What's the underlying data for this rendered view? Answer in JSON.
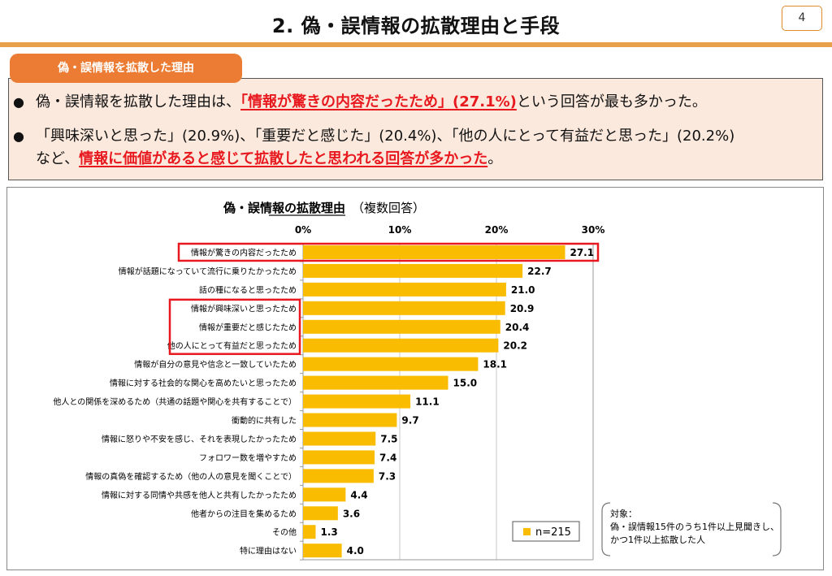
{
  "header": {
    "title": "2. 偽・誤情報の拡散理由と手段",
    "page_number": "4"
  },
  "section": {
    "tab_label": "偽・誤情報を拡散した理由"
  },
  "summary": {
    "bullet1": {
      "pre": "偽・誤情報を拡散した理由は、",
      "highlight": "「情報が驚きの内容だったため」(27.1%)",
      "post": "という回答が最も多かった。"
    },
    "bullet2": {
      "line1": "「興味深いと思った」(20.9%)、「重要だと感じた」(20.4%)、「他の人にとって有益だと思った」(20.2%)",
      "line2_pre": "など、",
      "line2_highlight": "情報に価値があると感じて拡散したと思われる回答が多かった",
      "line2_post": "。"
    }
  },
  "colors": {
    "bar": "#f9bc00",
    "highlight_box": "#e8191e",
    "accent_orange": "#ec7c33",
    "summary_bg": "#fce9dd"
  },
  "chart_data": {
    "type": "bar",
    "orientation": "horizontal",
    "title": "偽・誤情報の拡散理由",
    "subtitle": "（複数回答）",
    "xlim": [
      0,
      30
    ],
    "x_ticks": [
      "0%",
      "10%",
      "20%",
      "30%"
    ],
    "grid": true,
    "categories": [
      "情報が驚きの内容だったため",
      "情報が話題になっていて流行に乗りたかったため",
      "話の種になると思ったため",
      "情報が興味深いと思ったため",
      "情報が重要だと感じたため",
      "他の人にとって有益だと思ったため",
      "情報が自分の意見や信念と一致していたため",
      "情報に対する社会的な関心を高めたいと思ったため",
      "他人との関係を深めるため（共通の話題や関心を共有することで）",
      "衝動的に共有した",
      "情報に怒りや不安を感じ、それを表現したかったため",
      "フォロワー数を増やすため",
      "情報の真偽を確認するため（他の人の意見を聞くことで）",
      "情報に対する同情や共感を他人と共有したかったため",
      "他者からの注目を集めるため",
      "その他",
      "特に理由はない"
    ],
    "values": [
      27.1,
      22.7,
      21.0,
      20.9,
      20.4,
      20.2,
      18.1,
      15.0,
      11.1,
      9.7,
      7.5,
      7.4,
      7.3,
      4.4,
      3.6,
      1.3,
      4.0
    ],
    "value_labels": [
      "27.1",
      "22.7",
      "21.0",
      "20.9",
      "20.4",
      "20.2",
      "18.1",
      "15.0",
      "11.1",
      "9.7",
      "7.5",
      "7.4",
      "7.3",
      "4.4",
      "3.6",
      "1.3",
      "4.0"
    ],
    "legend": "n=215",
    "legend_position": "bottom-right",
    "highlighted_categories": [
      0,
      3,
      4,
      5
    ]
  },
  "note": {
    "line1": "対象：",
    "line2": "偽・誤情報15件のうち1件以上見聞きし、",
    "line3": "かつ1件以上拡散した人"
  }
}
